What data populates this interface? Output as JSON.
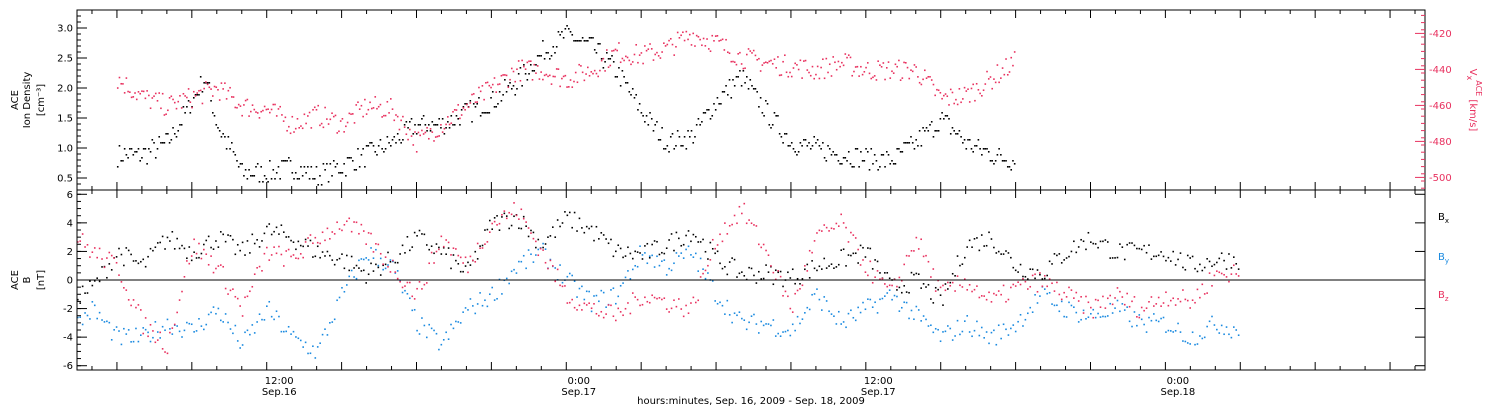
{
  "chart_data": [
    {
      "type": "scatter",
      "panel": "top",
      "ylabel": {
        "line1": "ACE",
        "line2": "Ion Density",
        "unit": "[cm⁻³]"
      },
      "ylabel_right": {
        "text": "V",
        "sub": "x",
        "sup": "ACE",
        "unit": " [km/s]"
      },
      "ylim": [
        0.3,
        3.3
      ],
      "ylim_right": [
        -507,
        -407
      ],
      "yticks": [
        "0.5",
        "1.0",
        "1.5",
        "2.0",
        "2.5",
        "3.0"
      ],
      "yticks_right": [
        "-420",
        "-440",
        "-460",
        "-480",
        "-500"
      ],
      "data_x_range_hours": [
        0,
        36
      ],
      "series": [
        {
          "color": "#000000",
          "axis": "left",
          "x": [
            0,
            1,
            2,
            3,
            3.5,
            4,
            5,
            6,
            7,
            8,
            9,
            10,
            11,
            12,
            13,
            14,
            15,
            16,
            17,
            18,
            19,
            20,
            21,
            22,
            23,
            24,
            25,
            26,
            27,
            28,
            29,
            30,
            31,
            32,
            33,
            34,
            35,
            36
          ],
          "y": [
            0.9,
            0.9,
            1.1,
            1.8,
            2.2,
            1.4,
            0.6,
            0.6,
            0.7,
            0.55,
            0.7,
            0.9,
            1.1,
            1.4,
            1.4,
            1.6,
            1.8,
            2.1,
            2.6,
            2.9,
            2.7,
            2.3,
            1.6,
            1.1,
            1.2,
            1.8,
            2.2,
            1.6,
            1.1,
            1.0,
            0.9,
            0.85,
            0.8,
            1.1,
            1.5,
            1.1,
            0.9,
            0.8
          ]
        },
        {
          "color": "#e8315f",
          "axis": "right",
          "x": [
            0,
            1,
            2,
            3,
            4,
            5,
            6,
            7,
            8,
            9,
            10,
            11,
            12,
            13,
            14,
            15,
            16,
            17,
            18,
            19,
            20,
            21,
            22,
            23,
            24,
            25,
            26,
            27,
            28,
            29,
            30,
            31,
            32,
            33,
            34,
            35,
            36
          ],
          "y": [
            -445,
            -455,
            -460,
            -455,
            -450,
            -460,
            -462,
            -470,
            -465,
            -470,
            -460,
            -462,
            -480,
            -470,
            -460,
            -450,
            -440,
            -440,
            -445,
            -440,
            -430,
            -432,
            -428,
            -420,
            -425,
            -433,
            -436,
            -438,
            -440,
            -436,
            -440,
            -440,
            -440,
            -456,
            -454,
            -445,
            -435
          ]
        }
      ]
    },
    {
      "type": "scatter",
      "panel": "bottom",
      "ylabel": {
        "line1": "ACE",
        "line2": "B",
        "unit": "[nT]"
      },
      "ylim": [
        -6.3,
        6.3
      ],
      "yticks": [
        "6",
        "4",
        "2",
        "0",
        "-2",
        "-4",
        "-6"
      ],
      "legend": [
        {
          "name": "B",
          "sub": "x",
          "color": "#000000"
        },
        {
          "name": "B",
          "sub": "y",
          "color": "#1a8ae0"
        },
        {
          "name": "B",
          "sub": "z",
          "color": "#e8315f"
        }
      ],
      "xlabel": "hours:minutes, Sep. 16, 2009 - Sep. 18, 2009",
      "xticks": [
        {
          "time": "12:00",
          "date": "Sep.16",
          "hour": 6.5
        },
        {
          "time": "0:00",
          "date": "Sep.17",
          "hour": 18.5
        },
        {
          "time": "12:00",
          "date": "Sep.17",
          "hour": 30.5
        },
        {
          "time": "0:00",
          "date": "Sep.18",
          "hour": 42.5
        }
      ],
      "xlim_hours": [
        -1.6,
        52.4
      ],
      "series": [
        {
          "name": "Bx",
          "color": "#000000",
          "x": [
            -1.6,
            -1,
            0,
            1,
            2,
            3,
            4,
            5,
            6,
            7,
            8,
            9,
            10,
            11,
            12,
            13,
            14,
            15,
            16,
            17,
            18,
            19,
            20,
            21,
            22,
            23,
            24,
            25,
            26,
            27,
            28,
            29,
            30,
            31,
            32,
            33,
            34,
            35,
            36,
            37,
            38,
            39,
            40,
            41,
            42,
            43,
            44,
            45
          ],
          "y": [
            -1,
            -0.5,
            2,
            1,
            3,
            2,
            3,
            2,
            3.5,
            3,
            2,
            1.5,
            0.5,
            1.5,
            3,
            2,
            0.5,
            4,
            4.5,
            2.5,
            4.4,
            3.5,
            2,
            1.8,
            2.5,
            3.5,
            1.5,
            0.5,
            0.5,
            0.2,
            1,
            1.5,
            2,
            -0.5,
            0,
            -1.5,
            2.5,
            3,
            1,
            0.5,
            2,
            3,
            2,
            2,
            2,
            1,
            1.5,
            1.5
          ]
        },
        {
          "name": "By",
          "color": "#1a8ae0",
          "x": [
            -1.6,
            -1,
            0,
            1,
            2,
            3,
            4,
            5,
            6,
            7,
            8,
            9,
            10,
            11,
            12,
            13,
            14,
            15,
            16,
            17,
            18,
            19,
            20,
            21,
            22,
            23,
            24,
            25,
            26,
            27,
            28,
            29,
            30,
            31,
            32,
            33,
            34,
            35,
            36,
            37,
            38,
            39,
            40,
            41,
            42,
            43,
            44,
            45
          ],
          "y": [
            -3,
            -2,
            -4,
            -4,
            -3,
            -3.5,
            -2,
            -4.5,
            -2,
            -4,
            -5,
            -1,
            2,
            1,
            -3,
            -4.5,
            -2,
            -1,
            1,
            2,
            0,
            -1.5,
            -1,
            2,
            1,
            2,
            -1,
            -3,
            -3,
            -3.5,
            -1,
            -3,
            -2,
            -1,
            -2.5,
            -4,
            -3,
            -4,
            -3,
            -1,
            -2,
            -2.5,
            -2,
            -3,
            -3,
            -4,
            -3,
            -3.5
          ]
        },
        {
          "name": "Bz",
          "color": "#e8315f",
          "x": [
            -1.6,
            -1,
            0,
            1,
            2,
            3,
            4,
            5,
            6,
            7,
            8,
            9,
            10,
            11,
            12,
            13,
            14,
            15,
            16,
            17,
            18,
            19,
            20,
            21,
            22,
            23,
            24,
            25,
            26,
            27,
            28,
            29,
            30,
            31,
            32,
            33,
            34,
            35,
            36,
            37,
            38,
            39,
            40,
            41,
            42,
            43,
            44,
            45
          ],
          "y": [
            3,
            2,
            1,
            -3,
            -4.5,
            2.5,
            1,
            -2,
            2,
            1.5,
            3,
            4,
            3,
            1,
            -1,
            3,
            1,
            4,
            5,
            2,
            -1,
            -2,
            -2.5,
            -1,
            -1.5,
            -2,
            3,
            5,
            2,
            -2,
            3,
            4,
            1,
            -1,
            3,
            -1,
            0,
            -1.5,
            -0.5,
            0,
            -1,
            -2,
            -1,
            -2,
            -1,
            -1.5,
            0.5,
            0.5
          ]
        }
      ]
    }
  ]
}
